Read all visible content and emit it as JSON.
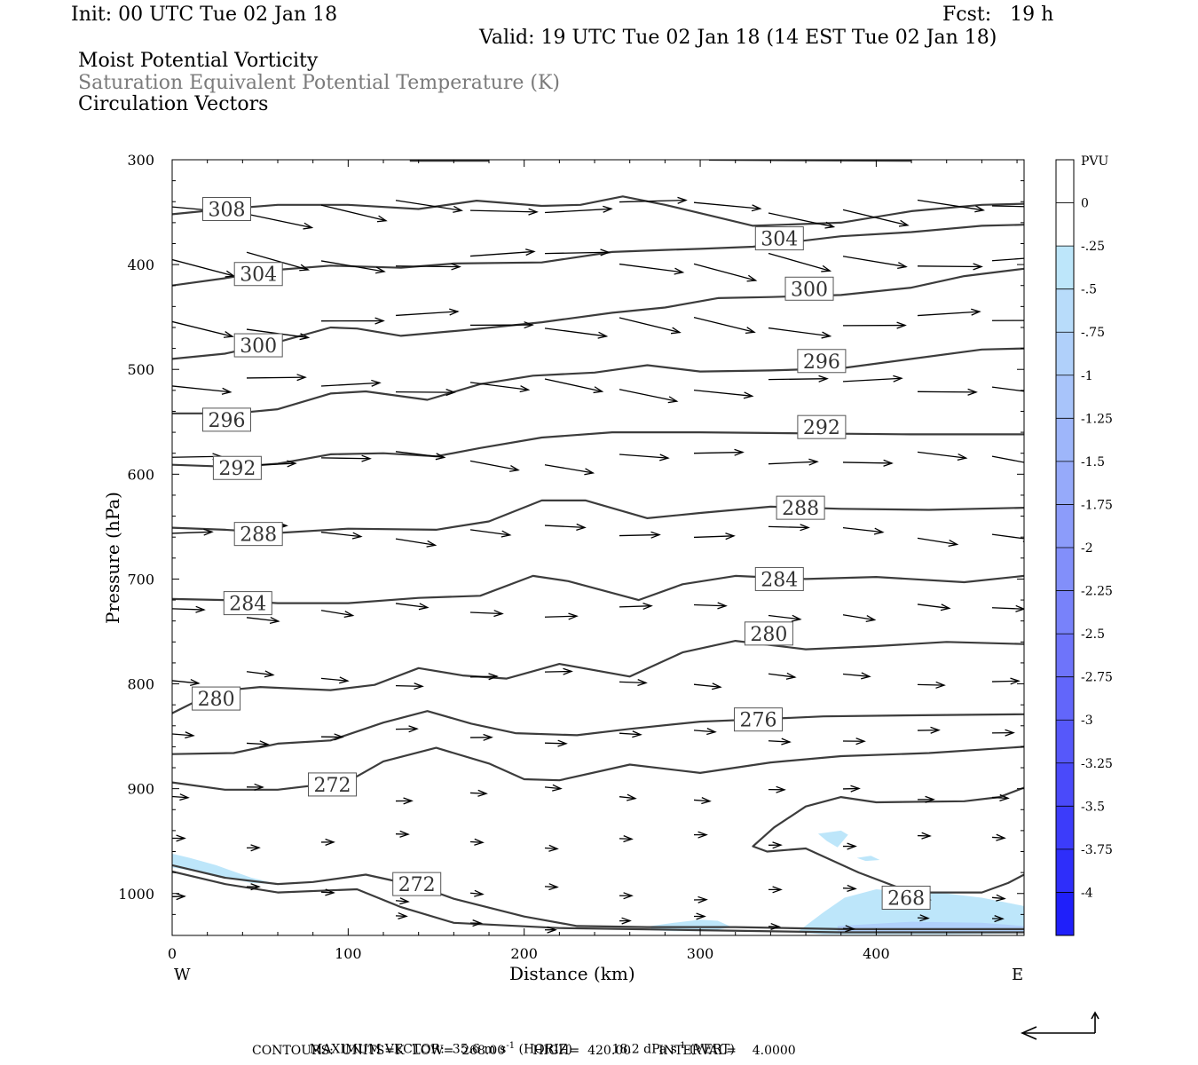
{
  "header": {
    "init": "Init: 00 UTC Tue 02 Jan 18",
    "fcst": "Fcst:   19 h",
    "valid": "Valid: 19 UTC Tue 02 Jan 18 (14 EST Tue 02 Jan 18)",
    "title1": "Moist Potential Vorticity",
    "title2": "Saturation Equivalent Potential Temperature (K)",
    "title3": "Circulation Vectors"
  },
  "footer": {
    "max_label": "MAXIMUM VECTOR:",
    "max_horiz_value": "35.6 m s",
    "max_horiz_unit": "(HORIZ)",
    "max_vert_value": "18.2 dPa s",
    "max_vert_unit": "(VERT)",
    "exp": "-1",
    "contours": "CONTOURS:  UNITS=K  LOW=  268.00       HIGH=  420.00       INTERVAL=    4.0000"
  },
  "chart_data": {
    "type": "contour",
    "xlabel": "Distance (km)",
    "ylabel": "Pressure (hPa)",
    "xlim": [
      0,
      484
    ],
    "ylim": [
      1040,
      300
    ],
    "x_ticks": [
      0,
      100,
      200,
      300,
      400
    ],
    "y_ticks": [
      300,
      400,
      500,
      600,
      700,
      800,
      900,
      1000
    ],
    "x_end_labels": {
      "left": "W",
      "right": "E"
    },
    "contour_labels": [
      {
        "value": "308",
        "x": 31,
        "p": 347
      },
      {
        "value": "304",
        "x": 49,
        "p": 409
      },
      {
        "value": "304",
        "x": 345,
        "p": 375
      },
      {
        "value": "300",
        "x": 49,
        "p": 477
      },
      {
        "value": "300",
        "x": 362,
        "p": 423
      },
      {
        "value": "296",
        "x": 31,
        "p": 548
      },
      {
        "value": "296",
        "x": 369,
        "p": 492
      },
      {
        "value": "292",
        "x": 37,
        "p": 594
      },
      {
        "value": "292",
        "x": 369,
        "p": 555
      },
      {
        "value": "288",
        "x": 49,
        "p": 657
      },
      {
        "value": "288",
        "x": 357,
        "p": 632
      },
      {
        "value": "284",
        "x": 43,
        "p": 723
      },
      {
        "value": "284",
        "x": 345,
        "p": 700
      },
      {
        "value": "280",
        "x": 25,
        "p": 814
      },
      {
        "value": "280",
        "x": 339,
        "p": 752
      },
      {
        "value": "276",
        "x": 333,
        "p": 834
      },
      {
        "value": "272",
        "x": 91,
        "p": 896
      },
      {
        "value": "272",
        "x": 139,
        "p": 991
      },
      {
        "value": "268",
        "x": 417,
        "p": 1004
      }
    ],
    "colorbar": {
      "label": "PVU",
      "levels": [
        "0",
        "-.25",
        "-.5",
        "-.75",
        "-1",
        "-1.25",
        "-1.5",
        "-1.75",
        "-2",
        "-2.25",
        "-2.5",
        "-2.75",
        "-3",
        "-3.25",
        "-3.5",
        "-3.75",
        "-4"
      ],
      "colors": [
        "#ffffff",
        "#ffffff",
        "#bde6fa",
        "#b8dcfa",
        "#b0d0fa",
        "#a8c4fa",
        "#9eb6fa",
        "#96aafa",
        "#8c9cfa",
        "#828ffa",
        "#7882fa",
        "#6e74fa",
        "#6266fa",
        "#5658fa",
        "#4a4afa",
        "#3c3cfa",
        "#2e2efa",
        "#1f1ffa"
      ]
    },
    "pv_fill_color": "#bde6fa",
    "line_color": "#3c3c3c",
    "vector_color": "#000000"
  }
}
